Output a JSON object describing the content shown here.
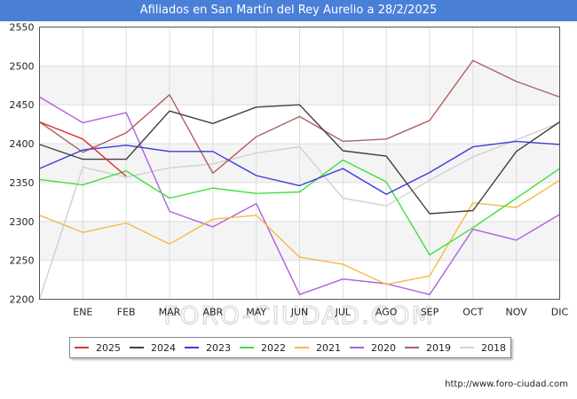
{
  "title": "Afiliados en San Martín del Rey Aurelio a 28/2/2025",
  "url": "http://www.foro-ciudad.com",
  "watermark": "FORO-CIUDAD.COM",
  "chart_data": {
    "type": "line",
    "categories": [
      "",
      "ENE",
      "FEB",
      "MAR",
      "ABR",
      "MAY",
      "JUN",
      "JUL",
      "AGO",
      "SEP",
      "OCT",
      "NOV",
      "DIC"
    ],
    "ylim": [
      2200,
      2550
    ],
    "yticks": [
      2200,
      2250,
      2300,
      2350,
      2400,
      2450,
      2500,
      2550
    ],
    "grid": true,
    "legend_position": "bottom",
    "series": [
      {
        "name": "2025",
        "color": "#e03030",
        "values": [
          2428,
          2406,
          2358,
          null,
          null,
          null,
          null,
          null,
          null,
          null,
          null,
          null,
          null
        ]
      },
      {
        "name": "2024",
        "color": "#404040",
        "values": [
          2399,
          2380,
          2380,
          2442,
          2426,
          2447,
          2450,
          2391,
          2384,
          2310,
          2314,
          2390,
          2428
        ]
      },
      {
        "name": "2023",
        "color": "#3a3ae0",
        "values": [
          2368,
          2392,
          2398,
          2390,
          2390,
          2359,
          2346,
          2368,
          2335,
          2363,
          2396,
          2403,
          2399
        ]
      },
      {
        "name": "2022",
        "color": "#40e040",
        "values": [
          2354,
          2347,
          2365,
          2330,
          2343,
          2336,
          2338,
          2379,
          2351,
          2257,
          2292,
          2330,
          2368
        ]
      },
      {
        "name": "2021",
        "color": "#f5b942",
        "values": [
          2308,
          2286,
          2298,
          2271,
          2303,
          2308,
          2254,
          2245,
          2219,
          2230,
          2324,
          2318,
          2353
        ]
      },
      {
        "name": "2020",
        "color": "#b05ee0",
        "values": [
          2460,
          2427,
          2440,
          2313,
          2293,
          2323,
          2206,
          2226,
          2220,
          2206,
          2290,
          2276,
          2309
        ]
      },
      {
        "name": "2019",
        "color": "#b06060",
        "values": [
          2428,
          2389,
          2414,
          2463,
          2362,
          2409,
          2435,
          2403,
          2406,
          2430,
          2507,
          2480,
          2460
        ]
      },
      {
        "name": "2018",
        "color": "#d0d0d0",
        "values": [
          2200,
          2370,
          2357,
          2369,
          2374,
          2388,
          2396,
          2330,
          2320,
          2353,
          2383,
          2405,
          2427
        ]
      }
    ]
  }
}
